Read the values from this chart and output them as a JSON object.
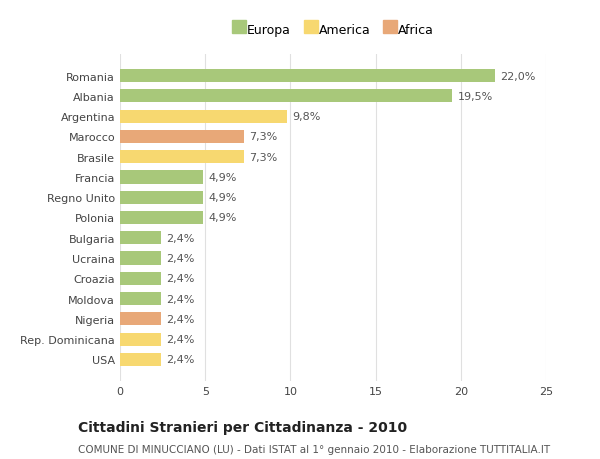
{
  "categories": [
    "Romania",
    "Albania",
    "Argentina",
    "Marocco",
    "Brasile",
    "Francia",
    "Regno Unito",
    "Polonia",
    "Bulgaria",
    "Ucraina",
    "Croazia",
    "Moldova",
    "Nigeria",
    "Rep. Dominicana",
    "USA"
  ],
  "values": [
    22.0,
    19.5,
    9.8,
    7.3,
    7.3,
    4.9,
    4.9,
    4.9,
    2.4,
    2.4,
    2.4,
    2.4,
    2.4,
    2.4,
    2.4
  ],
  "labels": [
    "22,0%",
    "19,5%",
    "9,8%",
    "7,3%",
    "7,3%",
    "4,9%",
    "4,9%",
    "4,9%",
    "2,4%",
    "2,4%",
    "2,4%",
    "2,4%",
    "2,4%",
    "2,4%",
    "2,4%"
  ],
  "colors": [
    "#a8c87a",
    "#a8c87a",
    "#f7d870",
    "#e8a878",
    "#f7d870",
    "#a8c87a",
    "#a8c87a",
    "#a8c87a",
    "#a8c87a",
    "#a8c87a",
    "#a8c87a",
    "#a8c87a",
    "#e8a878",
    "#f7d870",
    "#f7d870"
  ],
  "legend_labels": [
    "Europa",
    "America",
    "Africa"
  ],
  "legend_colors": [
    "#a8c87a",
    "#f7d870",
    "#e8a878"
  ],
  "xlim": [
    0,
    25
  ],
  "xticks": [
    0,
    5,
    10,
    15,
    20,
    25
  ],
  "title": "Cittadini Stranieri per Cittadinanza - 2010",
  "subtitle": "COMUNE DI MINUCCIANO (LU) - Dati ISTAT al 1° gennaio 2010 - Elaborazione TUTTITALIA.IT",
  "background_color": "#ffffff",
  "grid_color": "#e0e0e0",
  "bar_height": 0.65,
  "title_fontsize": 10,
  "subtitle_fontsize": 7.5,
  "label_fontsize": 8,
  "tick_fontsize": 8,
  "legend_fontsize": 9
}
